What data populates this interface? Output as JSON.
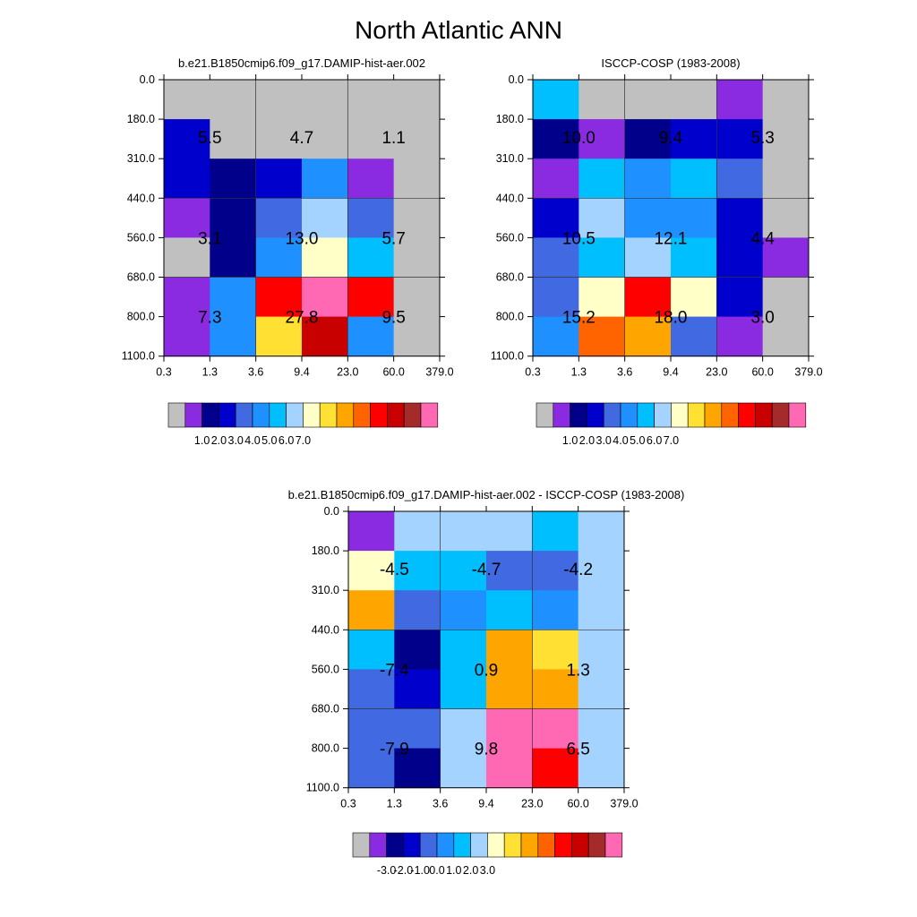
{
  "title": "North Atlantic ANN",
  "chart_data": [
    {
      "type": "heatmap",
      "panel": "model",
      "title": "b.e21.B1850cmip6.f09_g17.DAMIP-hist-aer.002",
      "x_ticks": [
        "0.3",
        "1.3",
        "3.6",
        "9.4",
        "23.0",
        "60.0",
        "379.0"
      ],
      "y_ticks": [
        "0.0",
        "180.0",
        "310.0",
        "440.0",
        "560.0",
        "680.0",
        "800.0",
        "1100.0"
      ],
      "grid": true,
      "cells": [
        [
          "#c0c0c0",
          "#c0c0c0",
          "#c0c0c0",
          "#c0c0c0",
          "#c0c0c0",
          "#c0c0c0"
        ],
        [
          "#0000cd",
          "#c0c0c0",
          "#c0c0c0",
          "#c0c0c0",
          "#c0c0c0",
          "#c0c0c0"
        ],
        [
          "#0000cd",
          "#00008b",
          "#0000cd",
          "#1e90ff",
          "#8a2be2",
          "#c0c0c0"
        ],
        [
          "#8a2be2",
          "#00008b",
          "#4169e1",
          "#a4d3ff",
          "#4169e1",
          "#c0c0c0"
        ],
        [
          "#c0c0c0",
          "#00008b",
          "#1e90ff",
          "#ffffc8",
          "#00bfff",
          "#c0c0c0"
        ],
        [
          "#8a2be2",
          "#1e90ff",
          "#ff0000",
          "#ff69b4",
          "#ff0000",
          "#c0c0c0"
        ],
        [
          "#8a2be2",
          "#1e90ff",
          "#ffe033",
          "#c80000",
          "#1e90ff",
          "#c0c0c0"
        ]
      ],
      "labels": [
        {
          "row_band": 0,
          "col_band": 0,
          "text": "5.5"
        },
        {
          "row_band": 0,
          "col_band": 1,
          "text": "4.7"
        },
        {
          "row_band": 0,
          "col_band": 2,
          "text": "1.1"
        },
        {
          "row_band": 1,
          "col_band": 0,
          "text": "3.1"
        },
        {
          "row_band": 1,
          "col_band": 1,
          "text": "13.0"
        },
        {
          "row_band": 1,
          "col_band": 2,
          "text": "5.7"
        },
        {
          "row_band": 2,
          "col_band": 0,
          "text": "7.3"
        },
        {
          "row_band": 2,
          "col_band": 1,
          "text": "27.8"
        },
        {
          "row_band": 2,
          "col_band": 2,
          "text": "9.5"
        }
      ],
      "colorbar": {
        "colors": [
          "#c0c0c0",
          "#8a2be2",
          "#00008b",
          "#0000cd",
          "#4169e1",
          "#1e90ff",
          "#00bfff",
          "#a4d3ff",
          "#ffffc8",
          "#ffe033",
          "#ffa500",
          "#ff6400",
          "#ff0000",
          "#c80000",
          "#a52a2a",
          "#ff69b4"
        ],
        "tick_labels": [
          "1.0",
          "2.0",
          "3.0",
          "4.0",
          "5.0",
          "6.0",
          "7.0"
        ]
      }
    },
    {
      "type": "heatmap",
      "panel": "obs",
      "title": "ISCCP-COSP (1983-2008)",
      "x_ticks": [
        "0.3",
        "1.3",
        "3.6",
        "9.4",
        "23.0",
        "60.0",
        "379.0"
      ],
      "y_ticks": [
        "0.0",
        "180.0",
        "310.0",
        "440.0",
        "560.0",
        "680.0",
        "800.0",
        "1100.0"
      ],
      "grid": true,
      "cells": [
        [
          "#00bfff",
          "#c0c0c0",
          "#c0c0c0",
          "#c0c0c0",
          "#8a2be2",
          "#c0c0c0"
        ],
        [
          "#00008b",
          "#8a2be2",
          "#00008b",
          "#0000cd",
          "#0000cd",
          "#c0c0c0"
        ],
        [
          "#8a2be2",
          "#00bfff",
          "#1e90ff",
          "#00bfff",
          "#4169e1",
          "#c0c0c0"
        ],
        [
          "#0000cd",
          "#a4d3ff",
          "#1e90ff",
          "#1e90ff",
          "#0000cd",
          "#c0c0c0"
        ],
        [
          "#4169e1",
          "#00bfff",
          "#a4d3ff",
          "#00bfff",
          "#0000cd",
          "#8a2be2"
        ],
        [
          "#4169e1",
          "#ffffc8",
          "#ff0000",
          "#ffffc8",
          "#0000cd",
          "#c0c0c0"
        ],
        [
          "#1e90ff",
          "#ff6400",
          "#ffa500",
          "#4169e1",
          "#8a2be2",
          "#c0c0c0"
        ]
      ],
      "labels": [
        {
          "row_band": 0,
          "col_band": 0,
          "text": "10.0"
        },
        {
          "row_band": 0,
          "col_band": 1,
          "text": "9.4"
        },
        {
          "row_band": 0,
          "col_band": 2,
          "text": "5.3"
        },
        {
          "row_band": 1,
          "col_band": 0,
          "text": "10.5"
        },
        {
          "row_band": 1,
          "col_band": 1,
          "text": "12.1"
        },
        {
          "row_band": 1,
          "col_band": 2,
          "text": "4.4"
        },
        {
          "row_band": 2,
          "col_band": 0,
          "text": "15.2"
        },
        {
          "row_band": 2,
          "col_band": 1,
          "text": "18.0"
        },
        {
          "row_band": 2,
          "col_band": 2,
          "text": "3.0"
        }
      ],
      "colorbar": {
        "colors": [
          "#c0c0c0",
          "#8a2be2",
          "#00008b",
          "#0000cd",
          "#4169e1",
          "#1e90ff",
          "#00bfff",
          "#a4d3ff",
          "#ffffc8",
          "#ffe033",
          "#ffa500",
          "#ff6400",
          "#ff0000",
          "#c80000",
          "#a52a2a",
          "#ff69b4"
        ],
        "tick_labels": [
          "1.0",
          "2.0",
          "3.0",
          "4.0",
          "5.0",
          "6.0",
          "7.0"
        ]
      }
    },
    {
      "type": "heatmap",
      "panel": "diff",
      "title": "b.e21.B1850cmip6.f09_g17.DAMIP-hist-aer.002 - ISCCP-COSP (1983-2008)",
      "x_ticks": [
        "0.3",
        "1.3",
        "3.6",
        "9.4",
        "23.0",
        "60.0",
        "379.0"
      ],
      "y_ticks": [
        "0.0",
        "180.0",
        "310.0",
        "440.0",
        "560.0",
        "680.0",
        "800.0",
        "1100.0"
      ],
      "grid": true,
      "cells": [
        [
          "#8a2be2",
          "#a4d3ff",
          "#a4d3ff",
          "#a4d3ff",
          "#00bfff",
          "#a4d3ff"
        ],
        [
          "#ffffc8",
          "#00bfff",
          "#00bfff",
          "#4169e1",
          "#4169e1",
          "#a4d3ff"
        ],
        [
          "#ffa500",
          "#4169e1",
          "#1e90ff",
          "#00bfff",
          "#1e90ff",
          "#a4d3ff"
        ],
        [
          "#00bfff",
          "#00008b",
          "#00bfff",
          "#ffa500",
          "#ffe033",
          "#a4d3ff"
        ],
        [
          "#4169e1",
          "#0000cd",
          "#00bfff",
          "#ffa500",
          "#ffa500",
          "#a4d3ff"
        ],
        [
          "#4169e1",
          "#4169e1",
          "#a4d3ff",
          "#ff69b4",
          "#ff69b4",
          "#a4d3ff"
        ],
        [
          "#4169e1",
          "#00008b",
          "#a4d3ff",
          "#ff69b4",
          "#ff0000",
          "#a4d3ff"
        ]
      ],
      "labels": [
        {
          "row_band": 0,
          "col_band": 0,
          "text": "-4.5"
        },
        {
          "row_band": 0,
          "col_band": 1,
          "text": "-4.7"
        },
        {
          "row_band": 0,
          "col_band": 2,
          "text": "-4.2"
        },
        {
          "row_band": 1,
          "col_band": 0,
          "text": "-7.4"
        },
        {
          "row_band": 1,
          "col_band": 1,
          "text": "0.9"
        },
        {
          "row_band": 1,
          "col_band": 2,
          "text": "1.3"
        },
        {
          "row_band": 2,
          "col_band": 0,
          "text": "-7.9"
        },
        {
          "row_band": 2,
          "col_band": 1,
          "text": "9.8"
        },
        {
          "row_band": 2,
          "col_band": 2,
          "text": "6.5"
        }
      ],
      "colorbar": {
        "colors": [
          "#c0c0c0",
          "#8a2be2",
          "#00008b",
          "#0000cd",
          "#4169e1",
          "#1e90ff",
          "#00bfff",
          "#a4d3ff",
          "#ffffc8",
          "#ffe033",
          "#ffa500",
          "#ff6400",
          "#ff0000",
          "#c80000",
          "#a52a2a",
          "#ff69b4"
        ],
        "tick_labels": [
          "-3.0",
          "-2.0",
          "-1.0",
          "0.0",
          "1.0",
          "2.0",
          "3.0"
        ]
      }
    }
  ]
}
